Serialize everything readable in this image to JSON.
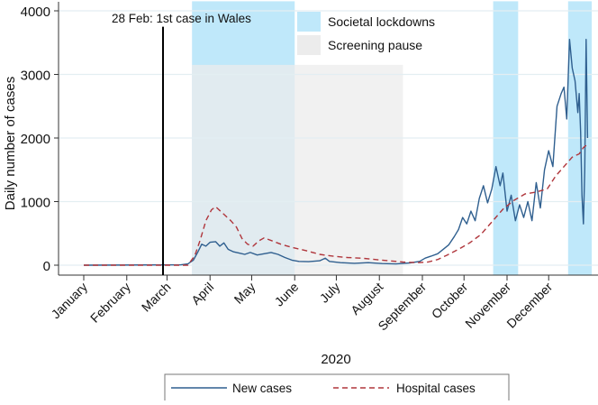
{
  "chart_data": {
    "type": "line",
    "title": "",
    "xlabel": "2020",
    "ylabel": "Daily number of cases",
    "ylim": [
      0,
      4000
    ],
    "yticks": [
      0,
      1000,
      2000,
      3000,
      4000
    ],
    "x_unit": "day of year 2020 (0 = 1 January)",
    "xlim": [
      0,
      365
    ],
    "month_ticks": [
      {
        "label": "January",
        "day": 0
      },
      {
        "label": "February",
        "day": 31
      },
      {
        "label": "March",
        "day": 60
      },
      {
        "label": "April",
        "day": 91
      },
      {
        "label": "May",
        "day": 121
      },
      {
        "label": "June",
        "day": 152
      },
      {
        "label": "July",
        "day": 182
      },
      {
        "label": "August",
        "day": 213
      },
      {
        "label": "September",
        "day": 244
      },
      {
        "label": "October",
        "day": 274
      },
      {
        "label": "November",
        "day": 305
      },
      {
        "label": "December",
        "day": 335
      }
    ],
    "annotation": {
      "label": "28 Feb: 1st case in Wales",
      "day": 58,
      "value": 3750
    },
    "shaded_regions": [
      {
        "name": "Societal lockdowns",
        "color": "#bfe8fa",
        "start": 78,
        "end": 152,
        "top": 4150
      },
      {
        "name": "Societal lockdowns",
        "color": "#bfe8fa",
        "start": 295,
        "end": 313,
        "top": 4150
      },
      {
        "name": "Societal lockdowns",
        "color": "#bfe8fa",
        "start": 349,
        "end": 366,
        "top": 4150
      },
      {
        "name": "Screening pause",
        "color": "#ececec",
        "start": 78,
        "end": 230,
        "top": 3150
      }
    ],
    "region_legend": [
      {
        "label": "Societal lockdowns",
        "color": "#bfe8fa"
      },
      {
        "label": "Screening pause",
        "color": "#ececec"
      }
    ],
    "series": [
      {
        "name": "New cases",
        "color": "#2f5f8f",
        "style": "solid",
        "points": [
          [
            0,
            0
          ],
          [
            70,
            5
          ],
          [
            75,
            20
          ],
          [
            79,
            80
          ],
          [
            82,
            200
          ],
          [
            85,
            330
          ],
          [
            88,
            300
          ],
          [
            91,
            360
          ],
          [
            95,
            370
          ],
          [
            98,
            300
          ],
          [
            101,
            350
          ],
          [
            104,
            250
          ],
          [
            108,
            210
          ],
          [
            112,
            190
          ],
          [
            116,
            170
          ],
          [
            120,
            200
          ],
          [
            125,
            160
          ],
          [
            130,
            180
          ],
          [
            135,
            200
          ],
          [
            140,
            170
          ],
          [
            145,
            120
          ],
          [
            150,
            80
          ],
          [
            155,
            60
          ],
          [
            162,
            55
          ],
          [
            170,
            70
          ],
          [
            174,
            110
          ],
          [
            177,
            60
          ],
          [
            185,
            40
          ],
          [
            195,
            30
          ],
          [
            205,
            40
          ],
          [
            215,
            25
          ],
          [
            225,
            20
          ],
          [
            235,
            35
          ],
          [
            242,
            60
          ],
          [
            246,
            110
          ],
          [
            250,
            140
          ],
          [
            255,
            180
          ],
          [
            259,
            250
          ],
          [
            263,
            320
          ],
          [
            267,
            450
          ],
          [
            270,
            560
          ],
          [
            273,
            750
          ],
          [
            276,
            650
          ],
          [
            279,
            850
          ],
          [
            282,
            700
          ],
          [
            285,
            1050
          ],
          [
            288,
            1250
          ],
          [
            291,
            980
          ],
          [
            294,
            1200
          ],
          [
            297,
            1550
          ],
          [
            300,
            1250
          ],
          [
            302,
            1450
          ],
          [
            305,
            850
          ],
          [
            308,
            1100
          ],
          [
            311,
            700
          ],
          [
            314,
            950
          ],
          [
            317,
            750
          ],
          [
            320,
            1000
          ],
          [
            323,
            700
          ],
          [
            326,
            1300
          ],
          [
            329,
            900
          ],
          [
            332,
            1500
          ],
          [
            335,
            1800
          ],
          [
            338,
            1550
          ],
          [
            341,
            2500
          ],
          [
            344,
            2700
          ],
          [
            346,
            2800
          ],
          [
            348,
            2300
          ],
          [
            350,
            3550
          ],
          [
            352,
            3100
          ],
          [
            354,
            2900
          ],
          [
            356,
            2400
          ],
          [
            357,
            2700
          ],
          [
            358,
            2100
          ],
          [
            359,
            1100
          ],
          [
            360,
            650
          ],
          [
            361,
            1500
          ],
          [
            362,
            3550
          ],
          [
            363,
            2000
          ]
        ]
      },
      {
        "name": "Hospital cases",
        "color": "#b0363c",
        "style": "dashed",
        "points": [
          [
            0,
            0
          ],
          [
            75,
            0
          ],
          [
            80,
            150
          ],
          [
            84,
            400
          ],
          [
            88,
            700
          ],
          [
            92,
            870
          ],
          [
            95,
            920
          ],
          [
            100,
            820
          ],
          [
            106,
            700
          ],
          [
            110,
            600
          ],
          [
            114,
            420
          ],
          [
            118,
            330
          ],
          [
            122,
            300
          ],
          [
            126,
            380
          ],
          [
            130,
            430
          ],
          [
            136,
            380
          ],
          [
            142,
            330
          ],
          [
            150,
            280
          ],
          [
            160,
            230
          ],
          [
            170,
            170
          ],
          [
            180,
            140
          ],
          [
            190,
            120
          ],
          [
            200,
            110
          ],
          [
            210,
            90
          ],
          [
            220,
            70
          ],
          [
            230,
            50
          ],
          [
            240,
            40
          ],
          [
            248,
            50
          ],
          [
            255,
            90
          ],
          [
            262,
            160
          ],
          [
            270,
            250
          ],
          [
            278,
            350
          ],
          [
            286,
            480
          ],
          [
            294,
            680
          ],
          [
            302,
            880
          ],
          [
            310,
            1020
          ],
          [
            318,
            1120
          ],
          [
            326,
            1150
          ],
          [
            334,
            1200
          ],
          [
            340,
            1400
          ],
          [
            346,
            1550
          ],
          [
            352,
            1700
          ],
          [
            357,
            1750
          ],
          [
            360,
            1850
          ],
          [
            363,
            1900
          ]
        ]
      }
    ],
    "legend_position": "bottom"
  }
}
